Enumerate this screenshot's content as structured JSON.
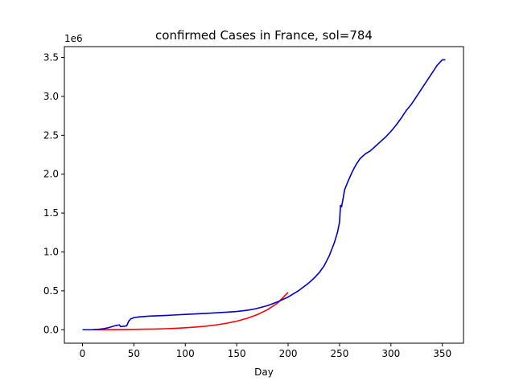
{
  "chart_data": {
    "type": "line",
    "title": "confirmed Cases in France, sol=784",
    "xlabel": "Day",
    "ylabel": "",
    "y_offset_label": "1e6",
    "xlim": [
      -17.6,
      370.6
    ],
    "ylim": [
      -0.173,
      3.64
    ],
    "x_ticks": [
      0,
      50,
      100,
      150,
      200,
      250,
      300,
      350
    ],
    "x_tick_labels": [
      "0",
      "50",
      "100",
      "150",
      "200",
      "250",
      "300",
      "350"
    ],
    "y_ticks": [
      0.0,
      0.5,
      1.0,
      1.5,
      2.0,
      2.5,
      3.0,
      3.5
    ],
    "y_tick_labels": [
      "0.0",
      "0.5",
      "1.0",
      "1.5",
      "2.0",
      "2.5",
      "3.0",
      "3.5"
    ],
    "grid": false,
    "legend": "none",
    "series": [
      {
        "color": "#ff0000",
        "x": [
          0,
          10,
          20,
          30,
          40,
          50,
          60,
          70,
          80,
          90,
          100,
          110,
          120,
          130,
          140,
          150,
          160,
          170,
          180,
          190,
          200
        ],
        "y": [
          0.0,
          0.0,
          0.001,
          0.002,
          0.003,
          0.005,
          0.007,
          0.009,
          0.013,
          0.018,
          0.025,
          0.034,
          0.046,
          0.062,
          0.083,
          0.11,
          0.146,
          0.194,
          0.258,
          0.345,
          0.48
        ]
      },
      {
        "color": "#0000cd",
        "x": [
          0,
          5,
          10,
          15,
          20,
          25,
          30,
          33,
          36,
          37,
          40,
          43,
          45,
          47,
          50,
          55,
          60,
          65,
          70,
          80,
          90,
          100,
          110,
          120,
          130,
          140,
          150,
          160,
          165,
          170,
          175,
          180,
          185,
          190,
          195,
          200,
          205,
          210,
          215,
          220,
          225,
          230,
          235,
          240,
          245,
          248,
          250,
          251,
          252,
          253,
          255,
          258,
          262,
          266,
          270,
          275,
          280,
          285,
          290,
          295,
          300,
          305,
          310,
          315,
          320,
          325,
          330,
          335,
          340,
          345,
          350,
          353
        ],
        "y": [
          0.0,
          0.0,
          0.001,
          0.005,
          0.012,
          0.025,
          0.045,
          0.055,
          0.062,
          0.04,
          0.045,
          0.05,
          0.11,
          0.14,
          0.155,
          0.165,
          0.17,
          0.175,
          0.178,
          0.183,
          0.19,
          0.197,
          0.203,
          0.21,
          0.218,
          0.225,
          0.235,
          0.25,
          0.26,
          0.275,
          0.292,
          0.31,
          0.335,
          0.36,
          0.39,
          0.42,
          0.46,
          0.5,
          0.55,
          0.6,
          0.66,
          0.73,
          0.82,
          0.95,
          1.12,
          1.25,
          1.38,
          1.6,
          1.58,
          1.65,
          1.8,
          1.9,
          2.02,
          2.12,
          2.2,
          2.26,
          2.3,
          2.36,
          2.42,
          2.48,
          2.55,
          2.63,
          2.72,
          2.82,
          2.9,
          3.0,
          3.1,
          3.2,
          3.3,
          3.4,
          3.47,
          3.47
        ]
      }
    ]
  }
}
